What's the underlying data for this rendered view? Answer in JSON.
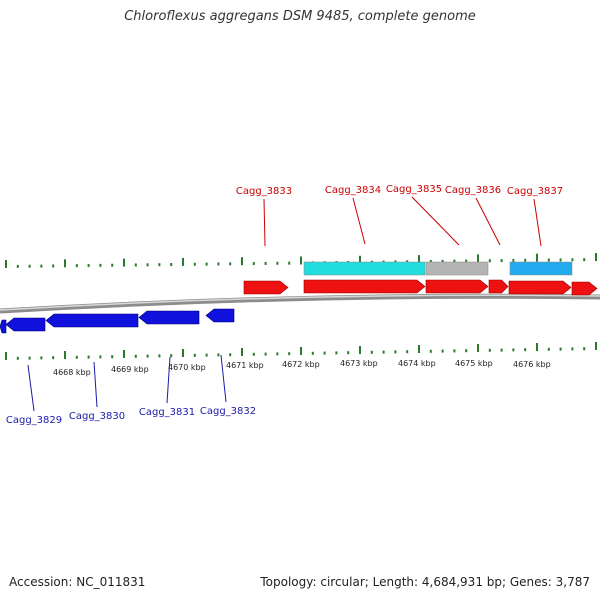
{
  "title": "Chloroflexus aggregans DSM 9485, complete genome",
  "footer": {
    "accession": "Accession: NC_011831",
    "summary": "Topology: circular; Length: 4,684,931 bp; Genes: 3,787"
  },
  "colors": {
    "forward_gene": "#ee1111",
    "reverse_gene": "#1111dd",
    "feature_cyan": "#22dddd",
    "feature_gray": "#b4b4b4",
    "feature_blue": "#22aaee",
    "tick": "#2a7a2a",
    "backbone": "#8c8c8c",
    "top_label": "#cc0000",
    "bottom_label": "#1a1aaa"
  },
  "kbp_labels": [
    {
      "text": "4668 kbp"
    },
    {
      "text": "4669 kbp"
    },
    {
      "text": "4670 kbp"
    },
    {
      "text": "4671 kbp"
    },
    {
      "text": "4672 kbp"
    },
    {
      "text": "4673 kbp"
    },
    {
      "text": "4674 kbp"
    },
    {
      "text": "4675 kbp"
    },
    {
      "text": "4676 kbp"
    }
  ],
  "top_genes": [
    {
      "label": "Cagg_3833"
    },
    {
      "label": "Cagg_3834"
    },
    {
      "label": "Cagg_3835"
    },
    {
      "label": "Cagg_3836"
    },
    {
      "label": "Cagg_3837"
    }
  ],
  "bottom_genes": [
    {
      "label": "Cagg_3829"
    },
    {
      "label": "Cagg_3830"
    },
    {
      "label": "Cagg_3831"
    },
    {
      "label": "Cagg_3832"
    }
  ]
}
